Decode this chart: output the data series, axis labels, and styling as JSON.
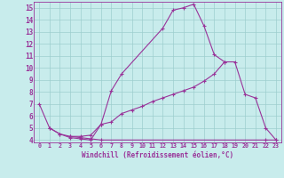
{
  "xlabel": "Windchill (Refroidissement éolien,°C)",
  "xlim": [
    -0.5,
    23.5
  ],
  "ylim": [
    3.8,
    15.5
  ],
  "yticks": [
    4,
    5,
    6,
    7,
    8,
    9,
    10,
    11,
    12,
    13,
    14,
    15
  ],
  "xticks": [
    0,
    1,
    2,
    3,
    4,
    5,
    6,
    7,
    8,
    9,
    10,
    11,
    12,
    13,
    14,
    15,
    16,
    17,
    18,
    19,
    20,
    21,
    22,
    23
  ],
  "background_color": "#c8ecec",
  "grid_color": "#9dcece",
  "line_color": "#993399",
  "line1_x": [
    0,
    1,
    2,
    3,
    4,
    5,
    6,
    7,
    8,
    12,
    13,
    14,
    15,
    16,
    17,
    18
  ],
  "line1_y": [
    7.0,
    5.0,
    4.5,
    4.2,
    4.1,
    4.0,
    5.3,
    8.1,
    9.5,
    13.3,
    14.8,
    15.0,
    15.3,
    13.5,
    11.1,
    10.5
  ],
  "line2_x": [
    1,
    2,
    3,
    4,
    5,
    6,
    22,
    23
  ],
  "line2_y": [
    5.0,
    4.5,
    4.3,
    4.2,
    4.1,
    4.0,
    4.0,
    4.0
  ],
  "line3_x": [
    3,
    4,
    5,
    6,
    7,
    8,
    9,
    10,
    11,
    12,
    13,
    14,
    15,
    16,
    17,
    18,
    19,
    20,
    21,
    22,
    23
  ],
  "line3_y": [
    4.3,
    4.3,
    4.4,
    5.3,
    5.5,
    6.2,
    6.5,
    6.8,
    7.2,
    7.5,
    7.8,
    8.1,
    8.4,
    8.9,
    9.5,
    10.5,
    10.5,
    7.8,
    7.5,
    5.0,
    4.0
  ]
}
